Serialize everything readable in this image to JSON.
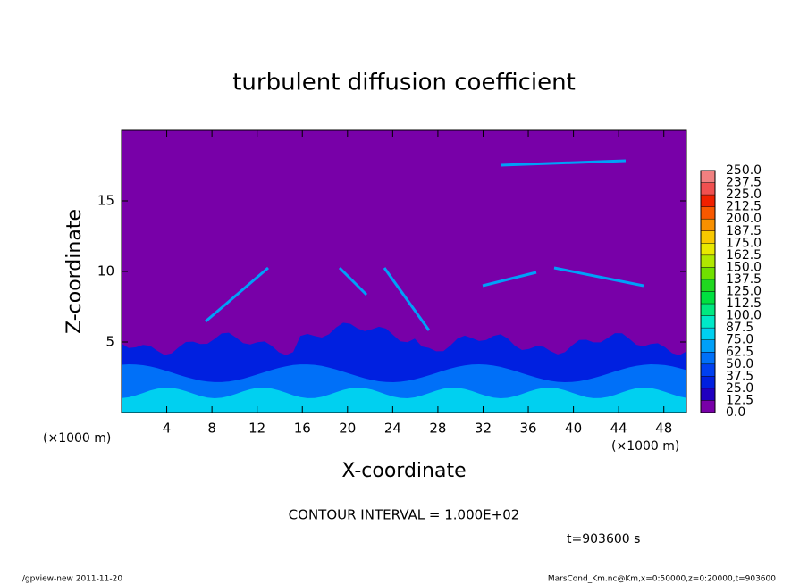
{
  "chart_data": {
    "type": "contour",
    "title": "turbulent diffusion coefficient",
    "xlabel": "X-coordinate",
    "ylabel": "Z-coordinate",
    "xunit": "(×1000 m)",
    "xlim": [
      0,
      50
    ],
    "ylim": [
      0,
      20
    ],
    "xticks": [
      4,
      8,
      12,
      16,
      20,
      24,
      28,
      32,
      36,
      40,
      44,
      48
    ],
    "yticks": [
      5,
      10,
      15
    ],
    "background_color": "#7800a8",
    "colorbar": {
      "levels": [
        {
          "value": 0,
          "label": "0.0"
        },
        {
          "value": 12.5,
          "label": "12.5"
        },
        {
          "value": 25,
          "label": "25.0"
        },
        {
          "value": 37.5,
          "label": "37.5"
        },
        {
          "value": 50,
          "label": "50.0"
        },
        {
          "value": 62.5,
          "label": "62.5"
        },
        {
          "value": 75,
          "label": "75.0"
        },
        {
          "value": 87.5,
          "label": "87.5"
        },
        {
          "value": 100,
          "label": "100.0"
        },
        {
          "value": 112.5,
          "label": "112.5"
        },
        {
          "value": 125,
          "label": "125.0"
        },
        {
          "value": 137.5,
          "label": "137.5"
        },
        {
          "value": 150,
          "label": "150.0"
        },
        {
          "value": 162.5,
          "label": "162.5"
        },
        {
          "value": 175,
          "label": "175.0"
        },
        {
          "value": 187.5,
          "label": "187.5"
        },
        {
          "value": 200,
          "label": "200.0"
        },
        {
          "value": 212.5,
          "label": "212.5"
        },
        {
          "value": 225,
          "label": "225.0"
        },
        {
          "value": 237.5,
          "label": "237.5"
        },
        {
          "value": 250,
          "label": "250.0"
        }
      ],
      "colors": [
        "#7800a8",
        "#2000c0",
        "#0020e0",
        "#0040f0",
        "#0070f8",
        "#00a0f8",
        "#00d0f0",
        "#00e8c8",
        "#00e880",
        "#00e040",
        "#20d820",
        "#70e000",
        "#b0e800",
        "#e8e800",
        "#f8c800",
        "#f89000",
        "#f85800",
        "#f02000",
        "#f05050",
        "#f08080"
      ]
    },
    "contour_interval": "CONTOUR INTERVAL = 1.000E+02",
    "time_label": "t=903600 s",
    "footer_left": "./gpview-new  2011-11-20",
    "footer_right": "MarsCond_Km.nc@Km,x=0:50000,z=0:20000,t=903600"
  }
}
